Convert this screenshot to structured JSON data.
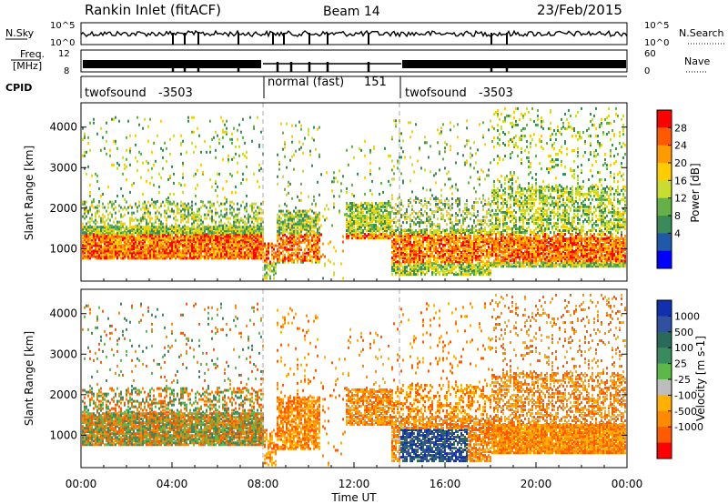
{
  "header": {
    "title": "Rankin Inlet (fitACF)",
    "beam": "Beam 14",
    "date": "23/Feb/2015"
  },
  "aux_panels": {
    "nsky_label": "N.Sky",
    "nsearch_label": "N.Search",
    "nsky_ticks": [
      "10^5",
      "10^0"
    ],
    "nsearch_ticks": [
      "10^5",
      "10^0"
    ],
    "freq_label_1": "Freq.",
    "freq_label_2": "[MHz]",
    "freq_ticks": [
      "12",
      "8"
    ],
    "nave_label": "Nave",
    "nave_ticks": [
      "60",
      "0"
    ],
    "cpid_label": "CPID",
    "cpid_segments": [
      {
        "name": "twofsound",
        "id": "-3503",
        "start": 0,
        "end": 8
      },
      {
        "name": "normal (fast)",
        "id": "151",
        "start": 8,
        "end": 14
      },
      {
        "name": "twofsound",
        "id": "-3503",
        "start": 14,
        "end": 24
      }
    ]
  },
  "chart_data": [
    {
      "type": "heatmap",
      "parameter": "Power",
      "ylabel": "Slant Range [km]",
      "y_ticks": [
        1000,
        2000,
        3000,
        4000
      ],
      "ylim": [
        200,
        4600
      ],
      "xlim": [
        0,
        24
      ],
      "colorbar_label": "Power [dB]",
      "colorbar_ticks": [
        "28",
        "24",
        "20",
        "16",
        "12",
        "8",
        "4"
      ],
      "colorbar_colors": [
        "#ff0000",
        "#ff5a00",
        "#ff9a00",
        "#ffcc00",
        "#c8dd30",
        "#66b04a",
        "#3a8a5a",
        "#1f5aa8",
        "#0000ff"
      ]
    },
    {
      "type": "heatmap",
      "parameter": "Velocity",
      "ylabel": "Slant Range [km]",
      "y_ticks": [
        1000,
        2000,
        3000,
        4000
      ],
      "ylim": [
        200,
        4600
      ],
      "xlim": [
        0,
        24
      ],
      "xlabel": "Time UT",
      "x_ticks": [
        "00:00",
        "04:00",
        "08:00",
        "12:00",
        "16:00",
        "20:00",
        "00:00"
      ],
      "colorbar_label": "Velocity [m s-1]",
      "colorbar_ticks": [
        "1000",
        "500",
        "100",
        "25",
        "-25",
        "-100",
        "-500",
        "-1000"
      ],
      "colorbar_colors": [
        "#1030b0",
        "#3050a0",
        "#2a6a5a",
        "#3a8a60",
        "#5db84a",
        "#bdbdbd",
        "#ffb000",
        "#ff8a00",
        "#ff5a00",
        "#ff0000"
      ]
    }
  ]
}
